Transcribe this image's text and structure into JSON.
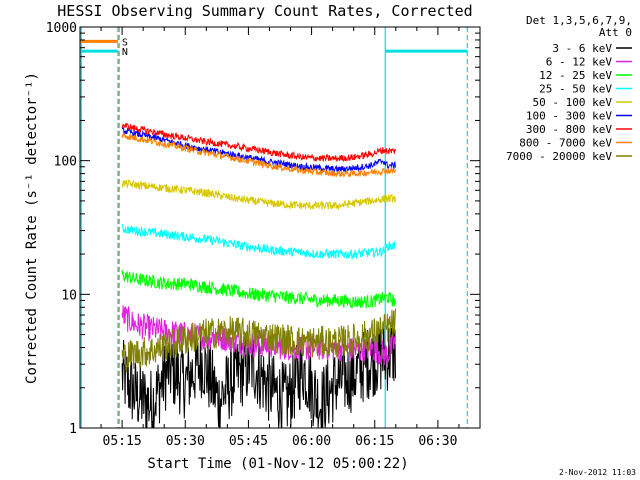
{
  "chart_data": {
    "type": "line",
    "title": "HESSI Observing Summary Count Rates, Corrected",
    "xlabel": "Start Time (01-Nov-12 05:00:22)",
    "ylabel": "Corrected Count Rate (s⁻¹ detector⁻¹)",
    "y_scale": "log",
    "ylim": [
      1,
      1000
    ],
    "xlim_minutes": [
      5.0,
      100.0
    ],
    "x_ticks": [
      {
        "minute": 15,
        "label": "05:15"
      },
      {
        "minute": 30,
        "label": "05:30"
      },
      {
        "minute": 45,
        "label": "05:45"
      },
      {
        "minute": 60,
        "label": "06:00"
      },
      {
        "minute": 75,
        "label": "06:15"
      },
      {
        "minute": 90,
        "label": "06:30"
      }
    ],
    "y_ticks": [
      {
        "value": 1,
        "label": "1"
      },
      {
        "value": 10,
        "label": "10"
      },
      {
        "value": 100,
        "label": "100"
      },
      {
        "value": 1000,
        "label": "1000"
      }
    ],
    "legend": {
      "placement": "top-right",
      "header": [
        "Det 1,3,5,6,7,9,",
        "Att 0"
      ]
    },
    "series": [
      {
        "name": "3 - 6 keV",
        "color": "#000000",
        "x": [
          15,
          18,
          22,
          26,
          30,
          34,
          38,
          42,
          46,
          50,
          54,
          58,
          62,
          66,
          70,
          74,
          78,
          80
        ],
        "y": [
          2.5,
          1.8,
          1.5,
          2.8,
          2.2,
          3.2,
          1.6,
          2.5,
          3.0,
          2.0,
          1.6,
          2.8,
          1.5,
          2.2,
          2.5,
          3.2,
          3.5,
          3.8
        ]
      },
      {
        "name": "6 - 12 keV",
        "color": "#e020e0",
        "x": [
          15,
          18,
          22,
          26,
          30,
          34,
          38,
          42,
          46,
          50,
          54,
          58,
          62,
          66,
          70,
          74,
          78,
          80
        ],
        "y": [
          7.0,
          6.0,
          5.5,
          5.2,
          5.0,
          4.8,
          4.8,
          4.5,
          4.2,
          4.2,
          4.0,
          4.0,
          4.0,
          4.0,
          3.8,
          4.0,
          3.5,
          4.5
        ]
      },
      {
        "name": "12 - 25 keV",
        "color": "#00ff00",
        "x": [
          15,
          18,
          22,
          26,
          30,
          34,
          38,
          42,
          46,
          50,
          54,
          58,
          62,
          66,
          70,
          74,
          78,
          80
        ],
        "y": [
          14.0,
          13.0,
          12.5,
          12.0,
          12.0,
          11.5,
          11.0,
          10.5,
          10.0,
          9.8,
          9.5,
          9.3,
          9.0,
          9.0,
          8.8,
          8.8,
          9.5,
          8.8
        ]
      },
      {
        "name": "25 - 50 keV",
        "color": "#00ffff",
        "x": [
          15,
          18,
          22,
          26,
          30,
          34,
          38,
          42,
          46,
          50,
          54,
          58,
          62,
          66,
          70,
          74,
          77,
          78,
          80
        ],
        "y": [
          31.0,
          30.0,
          29.0,
          28.0,
          27.0,
          26.0,
          25.0,
          23.5,
          22.5,
          21.5,
          21.0,
          20.5,
          20.0,
          20.0,
          20.0,
          20.5,
          21.0,
          23.0,
          23.0
        ]
      },
      {
        "name": "50 - 100 keV",
        "color": "#d8c800",
        "x": [
          15,
          18,
          22,
          26,
          30,
          34,
          38,
          42,
          46,
          50,
          54,
          58,
          62,
          66,
          70,
          74,
          78,
          80
        ],
        "y": [
          68.0,
          66.0,
          64.0,
          62.0,
          60.0,
          58.0,
          55.0,
          52.0,
          50.0,
          48.0,
          47.0,
          46.0,
          46.0,
          46.0,
          48.0,
          50.0,
          52.0,
          52.0
        ]
      },
      {
        "name": "100 - 300 keV",
        "color": "#0000ff",
        "x": [
          15,
          18,
          22,
          26,
          30,
          34,
          38,
          42,
          46,
          50,
          54,
          58,
          62,
          66,
          70,
          74,
          77,
          78,
          80
        ],
        "y": [
          168,
          160,
          150,
          140,
          130,
          122,
          116,
          110,
          104,
          98,
          94,
          90,
          88,
          86,
          88,
          92,
          100,
          92,
          92
        ]
      },
      {
        "name": "300 - 800 keV",
        "color": "#ff0000",
        "x": [
          15,
          18,
          22,
          26,
          30,
          34,
          38,
          42,
          46,
          50,
          54,
          58,
          62,
          66,
          70,
          74,
          77,
          78,
          80
        ],
        "y": [
          185,
          175,
          165,
          155,
          148,
          140,
          134,
          128,
          122,
          116,
          110,
          106,
          104,
          104,
          106,
          112,
          120,
          118,
          118
        ]
      },
      {
        "name": "800 - 7000 keV",
        "color": "#ff8000",
        "x": [
          15,
          18,
          22,
          26,
          30,
          34,
          38,
          42,
          46,
          50,
          54,
          58,
          62,
          66,
          70,
          74,
          78,
          80
        ],
        "y": [
          155,
          148,
          140,
          132,
          124,
          116,
          110,
          104,
          98,
          92,
          88,
          84,
          82,
          80,
          80,
          82,
          84,
          84
        ]
      },
      {
        "name": "7000 - 20000 keV",
        "color": "#808000",
        "x": [
          15,
          18,
          22,
          26,
          30,
          34,
          38,
          42,
          46,
          50,
          54,
          58,
          62,
          66,
          70,
          74,
          78,
          80
        ],
        "y": [
          3.4,
          3.6,
          3.8,
          4.2,
          4.6,
          5.0,
          5.2,
          5.2,
          5.0,
          4.8,
          4.6,
          4.4,
          4.4,
          4.4,
          4.6,
          5.0,
          5.6,
          6.2
        ]
      }
    ],
    "annotations": {
      "footer_date": "2-Nov-2012 11:03",
      "markers": [
        {
          "label": "S",
          "color": "#ff8000",
          "value": 780,
          "x_start": 5.0,
          "x_end": 14.0
        },
        {
          "label": "N",
          "color": "#00e0e0",
          "value": 660,
          "x_start": 5.0,
          "x_end": 14.0
        },
        {
          "label": "",
          "color": "#00e0e0",
          "value": 660,
          "x_start": 77.5,
          "x_end": 97.0
        }
      ],
      "vertical_lines": [
        {
          "minute": 5.3,
          "color": "#00e0e0",
          "style": "solid"
        },
        {
          "minute": 14.0,
          "color": "#00e0e0",
          "style": "dashed"
        },
        {
          "minute": 14.3,
          "color": "#ff8000",
          "style": "dashed"
        },
        {
          "minute": 77.5,
          "color": "#00e0e0",
          "style": "solid"
        },
        {
          "minute": 97.0,
          "color": "#00e0e0",
          "style": "dashed"
        }
      ]
    }
  }
}
